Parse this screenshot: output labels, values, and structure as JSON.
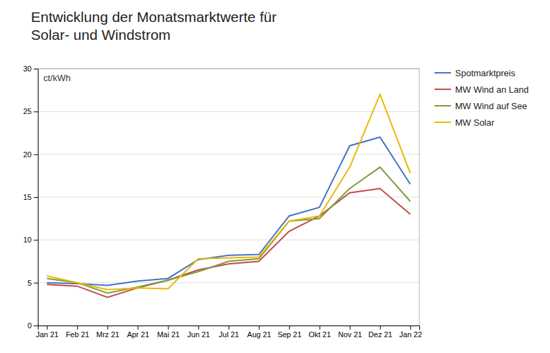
{
  "chart_data": {
    "type": "line",
    "title": "Entwicklung der Monatsmarktwerte für\nSolar- und Windstrom",
    "ylabel": "ct/kWh",
    "categories": [
      "Jan 21",
      "Feb 21",
      "Mrz 21",
      "Apr 21",
      "Mai 21",
      "Jun 21",
      "Jul 21",
      "Aug 21",
      "Sep 21",
      "Okt 21",
      "Nov 21",
      "Dez 21",
      "Jan 22"
    ],
    "series": [
      {
        "name": "Spotmarktpreis",
        "color": "#4472C4",
        "values": [
          5.0,
          4.9,
          4.7,
          5.2,
          5.5,
          7.7,
          8.2,
          8.3,
          12.8,
          13.8,
          21.0,
          22.0,
          16.5
        ]
      },
      {
        "name": "MW Wind an Land",
        "color": "#BE4B48",
        "values": [
          4.8,
          4.6,
          3.3,
          4.4,
          5.3,
          6.5,
          7.2,
          7.5,
          11.0,
          12.8,
          15.5,
          16.0,
          13.0
        ]
      },
      {
        "name": "MW Wind auf See",
        "color": "#7F9A3A",
        "values": [
          5.5,
          5.0,
          3.8,
          4.5,
          5.3,
          6.3,
          7.5,
          7.8,
          12.2,
          12.5,
          16.0,
          18.5,
          14.5
        ]
      },
      {
        "name": "MW Solar",
        "color": "#E8B800",
        "values": [
          5.8,
          5.0,
          4.2,
          4.4,
          4.3,
          7.8,
          7.9,
          8.0,
          12.2,
          12.8,
          18.5,
          27.0,
          17.8
        ]
      }
    ],
    "ylim": [
      0,
      30
    ],
    "yticks": [
      0,
      5,
      10,
      15,
      20,
      25,
      30
    ],
    "grid": true,
    "legend": "right"
  }
}
